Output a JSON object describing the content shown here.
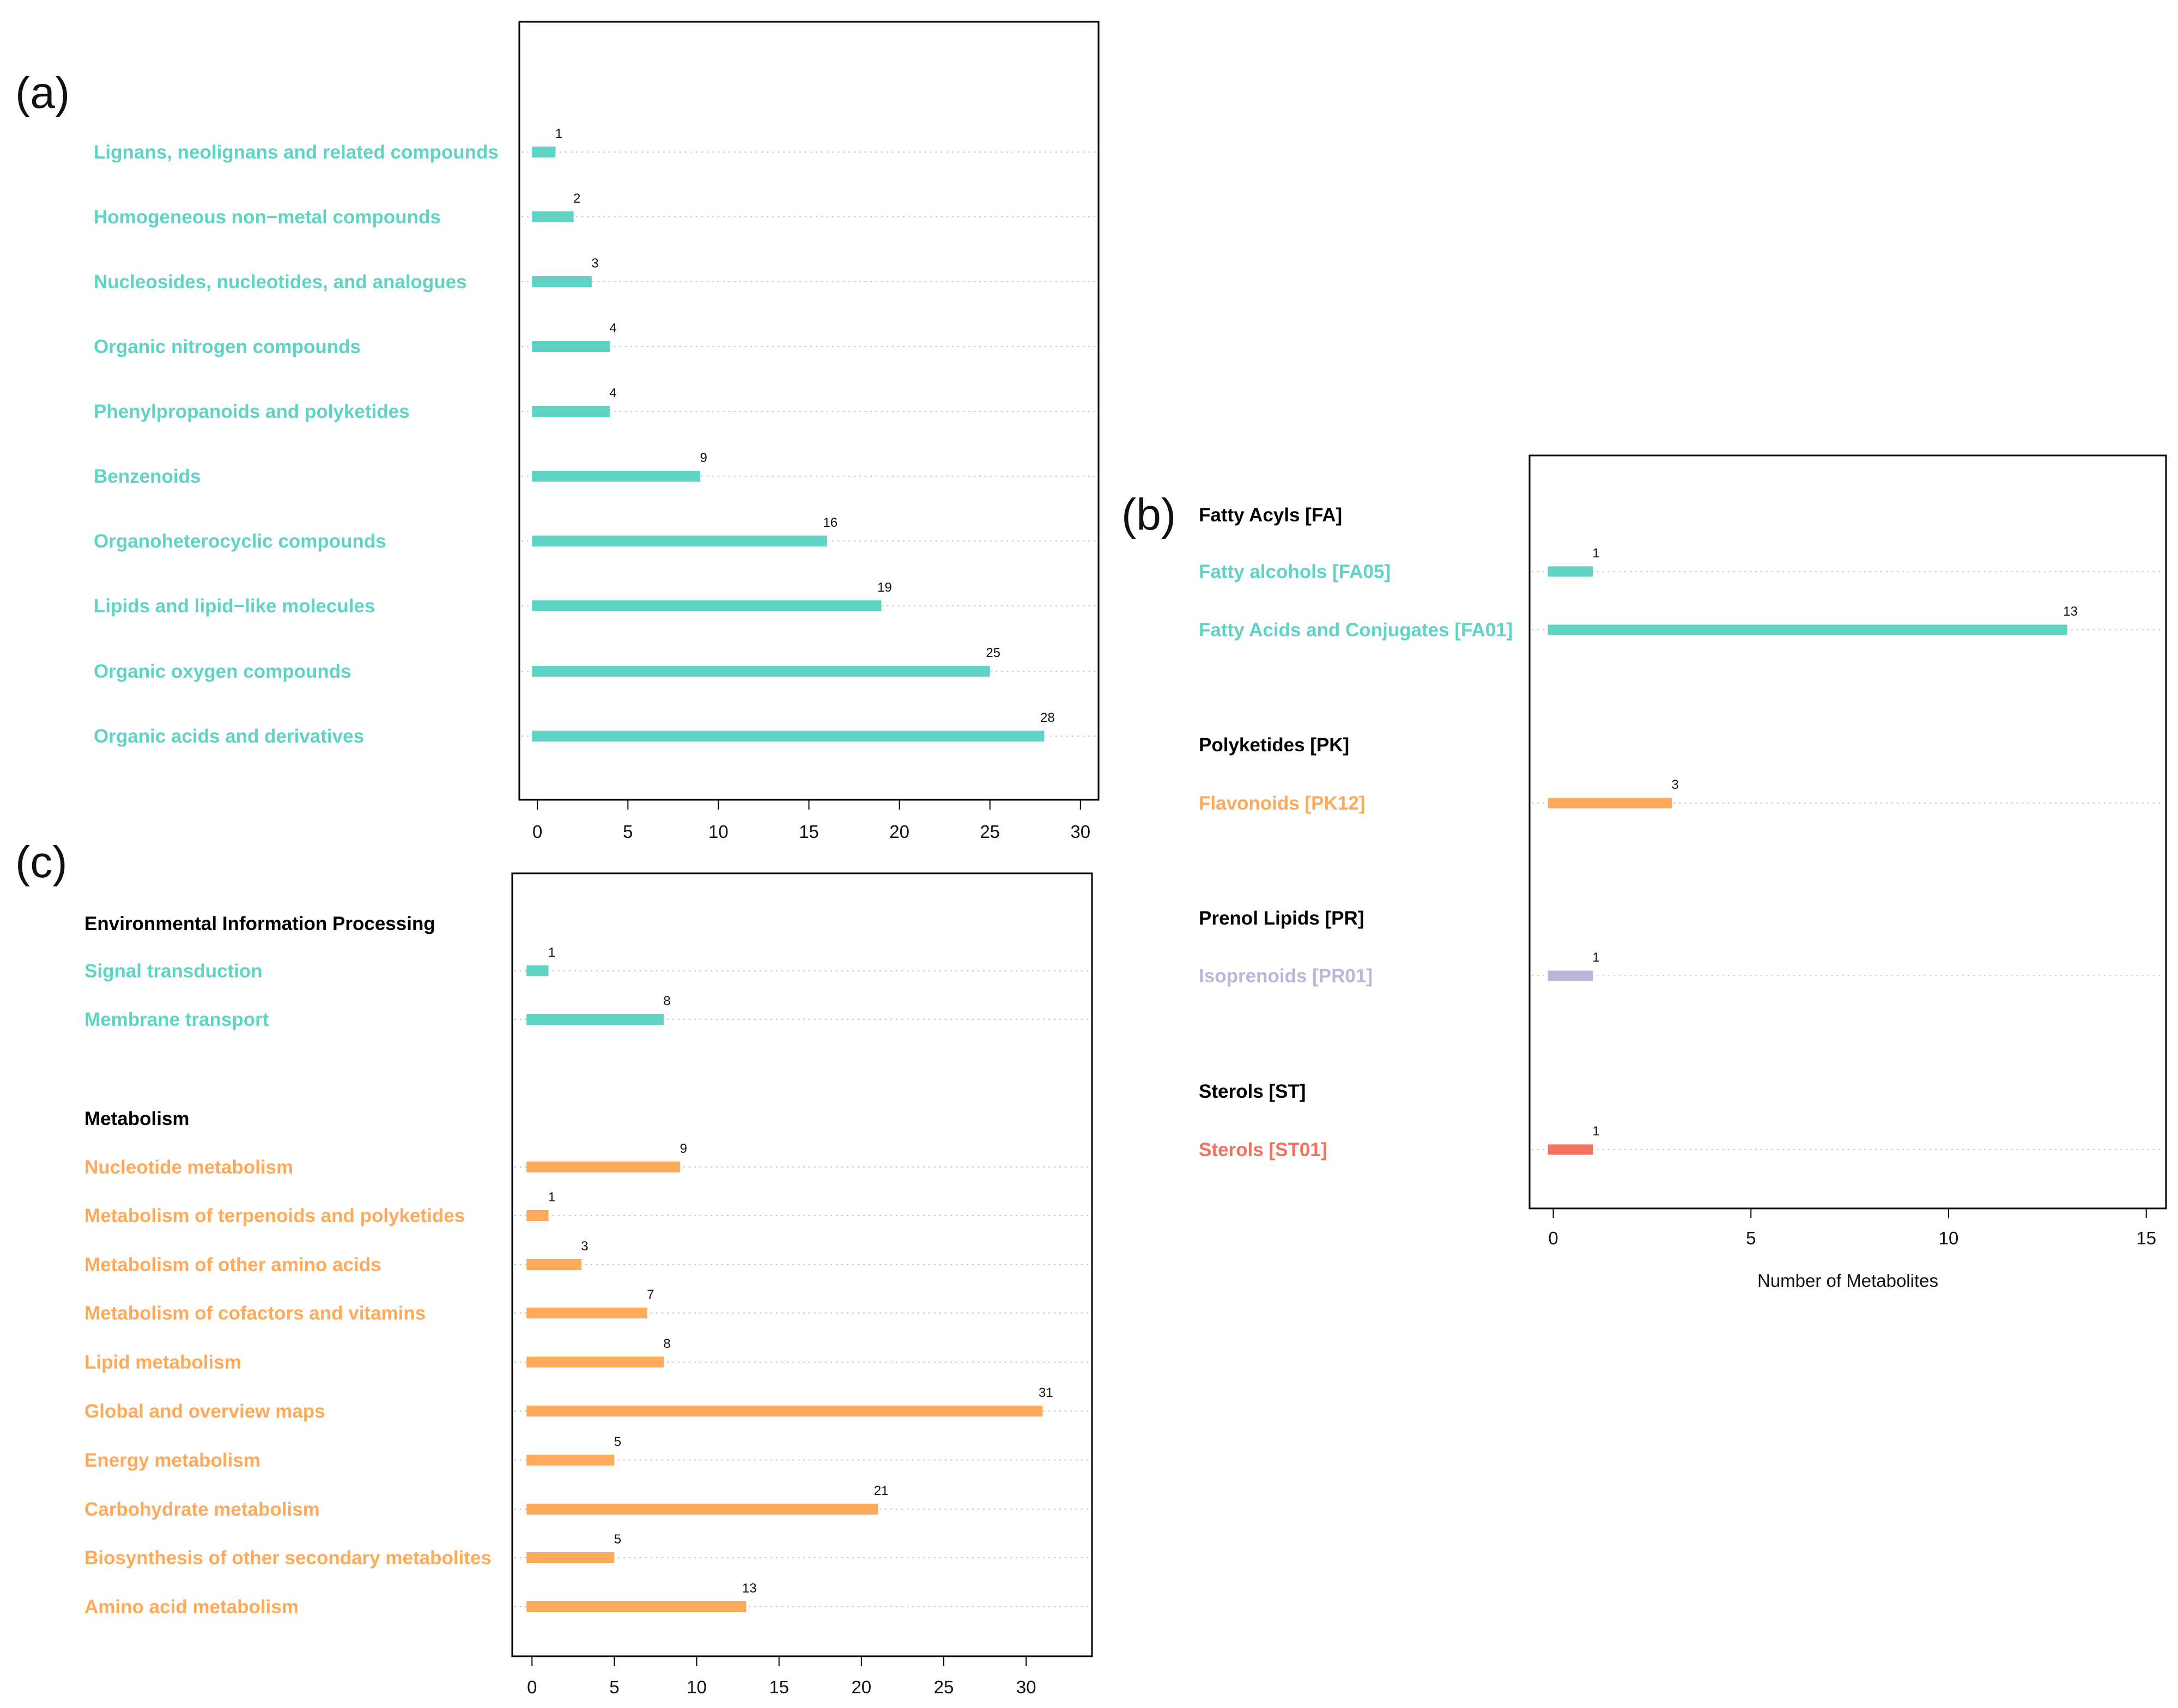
{
  "chart_data": [
    {
      "panel": "(a)",
      "type": "bar",
      "orientation": "horizontal",
      "categories": [
        "Lignans, neolignans and related compounds",
        "Homogeneous non−metal compounds",
        "Nucleosides, nucleotides, and analogues",
        "Organic nitrogen compounds",
        "Phenylpropanoids and polyketides",
        "Benzenoids",
        "Organoheterocyclic compounds",
        "Lipids and lipid−like molecules",
        "Organic oxygen compounds",
        "Organic acids and derivatives"
      ],
      "values": [
        1,
        2,
        3,
        4,
        4,
        9,
        16,
        19,
        25,
        28
      ],
      "value_labels": [
        "1",
        "2",
        "3",
        "4",
        "4",
        "9",
        "16",
        "19",
        "25",
        "28"
      ],
      "xlim": [
        -1,
        31
      ],
      "xticks": [
        0,
        5,
        10,
        15,
        20,
        25,
        30
      ],
      "xtick_labels": [
        "0",
        "5",
        "10",
        "15",
        "20",
        "25",
        "30"
      ],
      "xlabel": "",
      "grid": "dotted horizontal guide lines",
      "color": "#5fd3c4"
    },
    {
      "panel": "(b)",
      "type": "bar",
      "orientation": "horizontal",
      "groups": [
        {
          "name": "Fatty Acyls [FA]",
          "color": "#5fd3c4",
          "items": [
            {
              "label": "Fatty alcohols [FA05]",
              "value": 1,
              "value_label": "1"
            },
            {
              "label": "Fatty Acids and Conjugates [FA01]",
              "value": 13,
              "value_label": "13"
            }
          ]
        },
        {
          "name": "Polyketides [PK]",
          "color": "#ffaa5a",
          "items": [
            {
              "label": "Flavonoids [PK12]",
              "value": 3,
              "value_label": "3"
            }
          ]
        },
        {
          "name": "Prenol Lipids [PR]",
          "color": "#bdb5d9",
          "items": [
            {
              "label": "Isoprenoids [PR01]",
              "value": 1,
              "value_label": "1"
            }
          ]
        },
        {
          "name": "Sterols [ST]",
          "color": "#f2725f",
          "items": [
            {
              "label": "Sterols [ST01]",
              "value": 1,
              "value_label": "1"
            }
          ]
        }
      ],
      "xlim": [
        -0.6,
        15.5
      ],
      "xticks": [
        0,
        5,
        10,
        15
      ],
      "xtick_labels": [
        "0",
        "5",
        "10",
        "15"
      ],
      "xlabel": "Number of Metabolites",
      "grid": "dotted horizontal guide lines"
    },
    {
      "panel": "(c)",
      "type": "bar",
      "orientation": "horizontal",
      "groups": [
        {
          "name": "Environmental Information Processing",
          "color": "#5fd3c4",
          "items": [
            {
              "label": "Signal transduction",
              "value": 1,
              "value_label": "1"
            },
            {
              "label": "Membrane transport",
              "value": 8,
              "value_label": "8"
            }
          ]
        },
        {
          "name": "Metabolism",
          "color": "#ffaa5a",
          "items": [
            {
              "label": "Nucleotide metabolism",
              "value": 9,
              "value_label": "9"
            },
            {
              "label": "Metabolism of terpenoids and polyketides",
              "value": 1,
              "value_label": "1"
            },
            {
              "label": "Metabolism of other amino acids",
              "value": 3,
              "value_label": "3"
            },
            {
              "label": "Metabolism of cofactors and vitamins",
              "value": 7,
              "value_label": "7"
            },
            {
              "label": "Lipid metabolism",
              "value": 8,
              "value_label": "8"
            },
            {
              "label": "Global and overview maps",
              "value": 31,
              "value_label": "31"
            },
            {
              "label": "Energy metabolism",
              "value": 5,
              "value_label": "5"
            },
            {
              "label": "Carbohydrate metabolism",
              "value": 21,
              "value_label": "21"
            },
            {
              "label": "Biosynthesis of other secondary metabolites",
              "value": 5,
              "value_label": "5"
            },
            {
              "label": "Amino acid metabolism",
              "value": 13,
              "value_label": "13"
            }
          ]
        }
      ],
      "xlim": [
        -1.2,
        34
      ],
      "xticks": [
        0,
        5,
        10,
        15,
        20,
        25,
        30
      ],
      "xtick_labels": [
        "0",
        "5",
        "10",
        "15",
        "20",
        "25",
        "30"
      ],
      "xlabel": "",
      "grid": "dotted horizontal guide lines"
    }
  ]
}
